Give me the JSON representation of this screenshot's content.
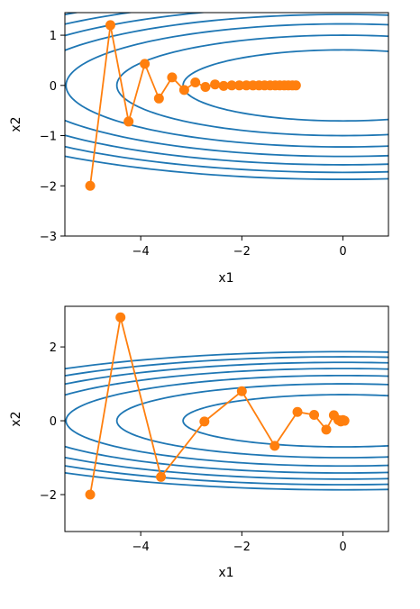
{
  "chart_data": [
    {
      "type": "line",
      "xlabel": "x1",
      "ylabel": "x2",
      "xlim": [
        -5.5,
        0.9
      ],
      "ylim": [
        -3.0,
        1.45
      ],
      "xticks": [
        {
          "value": -4,
          "label": "−4"
        },
        {
          "value": -2,
          "label": "−2"
        },
        {
          "value": 0,
          "label": "0"
        }
      ],
      "yticks": [
        {
          "value": 1,
          "label": "1"
        },
        {
          "value": 0,
          "label": "0"
        },
        {
          "value": -1,
          "label": "−1"
        },
        {
          "value": -2,
          "label": "−2"
        },
        {
          "value": -3,
          "label": "−3"
        }
      ],
      "contour_color": "#1f77b4",
      "series_color": "#ff7f0e",
      "contour_levels": [
        1,
        2,
        3,
        4,
        5,
        6,
        7
      ],
      "points": [
        {
          "x": -5.0,
          "y": -2.0
        },
        {
          "x": -4.6,
          "y": 1.2
        },
        {
          "x": -4.24,
          "y": -0.72
        },
        {
          "x": -3.92,
          "y": 0.43
        },
        {
          "x": -3.64,
          "y": -0.26
        },
        {
          "x": -3.38,
          "y": 0.16
        },
        {
          "x": -3.14,
          "y": -0.09
        },
        {
          "x": -2.92,
          "y": 0.06
        },
        {
          "x": -2.72,
          "y": -0.03
        },
        {
          "x": -2.53,
          "y": 0.02
        },
        {
          "x": -2.36,
          "y": -0.01
        },
        {
          "x": -2.2,
          "y": 0.0
        },
        {
          "x": -2.05,
          "y": 0.0
        },
        {
          "x": -1.91,
          "y": 0.0
        },
        {
          "x": -1.78,
          "y": 0.0
        },
        {
          "x": -1.66,
          "y": 0.0
        },
        {
          "x": -1.55,
          "y": 0.0
        },
        {
          "x": -1.44,
          "y": 0.0
        },
        {
          "x": -1.34,
          "y": 0.0
        },
        {
          "x": -1.25,
          "y": 0.0
        },
        {
          "x": -1.16,
          "y": 0.0
        },
        {
          "x": -1.08,
          "y": 0.0
        },
        {
          "x": -1.0,
          "y": 0.0
        },
        {
          "x": -0.93,
          "y": 0.0
        }
      ]
    },
    {
      "type": "line",
      "xlabel": "x1",
      "ylabel": "x2",
      "xlim": [
        -5.5,
        0.9
      ],
      "ylim": [
        -3.0,
        3.1
      ],
      "xticks": [
        {
          "value": -4,
          "label": "−4"
        },
        {
          "value": -2,
          "label": "−2"
        },
        {
          "value": 0,
          "label": "0"
        }
      ],
      "yticks": [
        {
          "value": 2,
          "label": "2"
        },
        {
          "value": 0,
          "label": "0"
        },
        {
          "value": -2,
          "label": "−2"
        }
      ],
      "contour_color": "#1f77b4",
      "series_color": "#ff7f0e",
      "contour_levels": [
        1,
        2,
        3,
        4,
        5,
        6,
        7
      ],
      "points": [
        {
          "x": -5.0,
          "y": -2.0
        },
        {
          "x": -4.4,
          "y": 2.8
        },
        {
          "x": -3.6,
          "y": -1.52
        },
        {
          "x": -2.74,
          "y": -0.02
        },
        {
          "x": -2.0,
          "y": 0.8
        },
        {
          "x": -1.35,
          "y": -0.68
        },
        {
          "x": -0.9,
          "y": 0.24
        },
        {
          "x": -0.57,
          "y": 0.16
        },
        {
          "x": -0.33,
          "y": -0.24
        },
        {
          "x": -0.18,
          "y": 0.15
        },
        {
          "x": -0.09,
          "y": 0.02
        },
        {
          "x": -0.04,
          "y": -0.02
        },
        {
          "x": 0.0,
          "y": 0.02
        },
        {
          "x": 0.03,
          "y": 0.0
        }
      ]
    }
  ]
}
